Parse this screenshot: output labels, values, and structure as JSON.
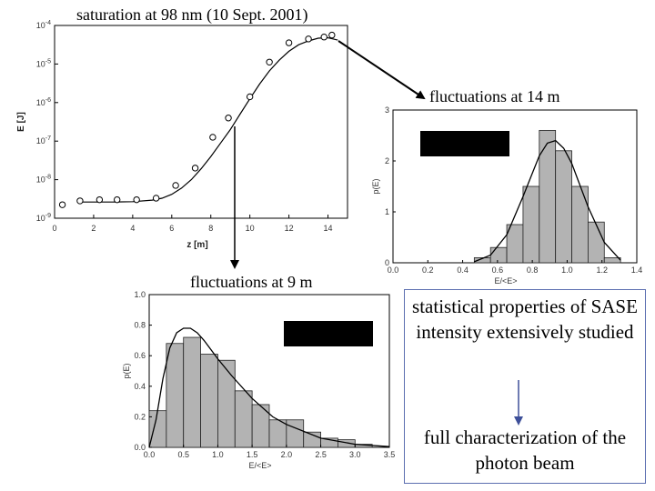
{
  "texts": {
    "main_title": "saturation at 98 nm (10 Sept. 2001)",
    "fluct14": "fluctuations at 14 m",
    "fluct9": "fluctuations at 9 m",
    "info_top": "statistical properties of SASE intensity extensively studied",
    "info_bottom": "full characterization of the photon beam"
  },
  "colors": {
    "bar_fill": "#b3b3b3",
    "box_border": "#5c6fb0",
    "arrow_blue": "#3d4f99",
    "redaction": "#000000"
  },
  "chart_data": [
    {
      "type": "scatter",
      "xlabel": "z [m]",
      "ylabel": "E [J]",
      "xlim": [
        0,
        15
      ],
      "ylim_log10": [
        -9,
        -4
      ],
      "y_scale": "log",
      "x_ticks": [
        0,
        2,
        4,
        6,
        8,
        10,
        12,
        14
      ],
      "y_ticks": [
        "10-9",
        "10-8",
        "10-7",
        "10-6",
        "10-5",
        "10-4"
      ],
      "points": {
        "x": [
          0.4,
          1.3,
          2.3,
          3.2,
          4.2,
          5.2,
          6.2,
          7.2,
          8.1,
          8.9,
          10.0,
          11.0,
          12.0,
          13.0,
          13.8,
          14.2
        ],
        "log10_y": [
          -8.65,
          -8.55,
          -8.52,
          -8.52,
          -8.52,
          -8.48,
          -8.15,
          -7.7,
          -6.9,
          -6.4,
          -5.85,
          -4.95,
          -4.45,
          -4.35,
          -4.3,
          -4.25
        ]
      },
      "fit_curve": {
        "x": [
          1.2,
          2,
          3,
          4,
          5,
          5.5,
          6,
          6.5,
          7,
          7.5,
          8,
          8.5,
          9,
          9.5,
          10,
          10.5,
          11,
          11.5,
          12,
          12.5,
          13,
          13.5,
          14,
          14.5
        ],
        "log10_y": [
          -8.58,
          -8.58,
          -8.58,
          -8.57,
          -8.53,
          -8.48,
          -8.38,
          -8.22,
          -8.0,
          -7.72,
          -7.4,
          -7.05,
          -6.7,
          -6.3,
          -5.9,
          -5.52,
          -5.18,
          -4.9,
          -4.67,
          -4.5,
          -4.4,
          -4.33,
          -4.32,
          -4.38
        ]
      }
    },
    {
      "type": "bar",
      "xlabel": "E/<E>",
      "ylabel": "p(E)",
      "xlim": [
        0.0,
        1.5
      ],
      "ylim": [
        0,
        3
      ],
      "x_ticks": [
        "0.0",
        "0.2",
        "0.4",
        "0.6",
        "0.8",
        "1.0",
        "1.2",
        "1.4"
      ],
      "y_ticks": [
        "0",
        "1",
        "2",
        "3"
      ],
      "bin_start": 0.5,
      "bin_width": 0.1,
      "values": [
        0.1,
        0.3,
        0.75,
        1.5,
        2.6,
        2.2,
        1.5,
        0.8,
        0.1
      ],
      "fit_curve": {
        "x": [
          0.5,
          0.6,
          0.7,
          0.8,
          0.9,
          0.95,
          1.0,
          1.05,
          1.1,
          1.2,
          1.3,
          1.4
        ],
        "y": [
          0.02,
          0.15,
          0.55,
          1.3,
          2.1,
          2.35,
          2.4,
          2.25,
          1.95,
          1.1,
          0.4,
          0.05
        ]
      }
    },
    {
      "type": "bar",
      "xlabel": "E/<E>",
      "ylabel": "p(E)",
      "xlim": [
        0.0,
        3.5
      ],
      "ylim": [
        0.0,
        1.0
      ],
      "x_ticks": [
        "0.0",
        "0.5",
        "1.0",
        "1.5",
        "2.0",
        "2.5",
        "3.0",
        "3.5"
      ],
      "y_ticks": [
        "0.0",
        "0.2",
        "0.4",
        "0.6",
        "0.8",
        "1.0"
      ],
      "bin_start": 0.0,
      "bin_width": 0.25,
      "values": [
        0.24,
        0.68,
        0.72,
        0.61,
        0.57,
        0.37,
        0.28,
        0.18,
        0.18,
        0.1,
        0.06,
        0.05,
        0.02,
        0.0
      ],
      "fit_curve": {
        "x": [
          0.0,
          0.1,
          0.2,
          0.3,
          0.4,
          0.5,
          0.6,
          0.7,
          0.8,
          1.0,
          1.2,
          1.5,
          1.8,
          2.0,
          2.5,
          3.0,
          3.5
        ],
        "y": [
          0.0,
          0.18,
          0.45,
          0.65,
          0.75,
          0.78,
          0.78,
          0.75,
          0.7,
          0.58,
          0.47,
          0.32,
          0.2,
          0.15,
          0.06,
          0.02,
          0.005
        ]
      }
    }
  ]
}
